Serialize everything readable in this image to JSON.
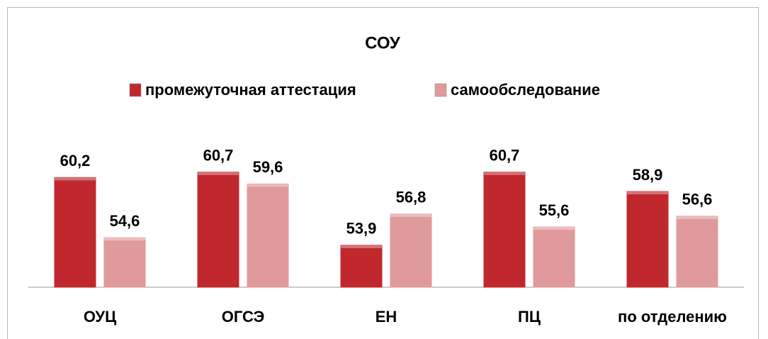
{
  "chart_data": {
    "type": "bar",
    "title": "СОУ",
    "categories": [
      "ОУЦ",
      "ОГСЭ",
      "ЕН",
      "ПЦ",
      "по отделению"
    ],
    "series": [
      {
        "name": "промежуточная аттестация",
        "color": "#c0282e",
        "values": [
          60.2,
          60.7,
          53.9,
          60.7,
          58.9
        ],
        "value_labels": [
          "60,2",
          "60,7",
          "53,9",
          "60,7",
          "58,9"
        ]
      },
      {
        "name": "самообследование",
        "color": "#e09a9b",
        "values": [
          54.6,
          59.6,
          56.8,
          55.6,
          56.6
        ],
        "value_labels": [
          "54,6",
          "59,6",
          "56,8",
          "55,6",
          "56,6"
        ]
      }
    ],
    "ylim": [
      50,
      62
    ],
    "legend": "top"
  }
}
